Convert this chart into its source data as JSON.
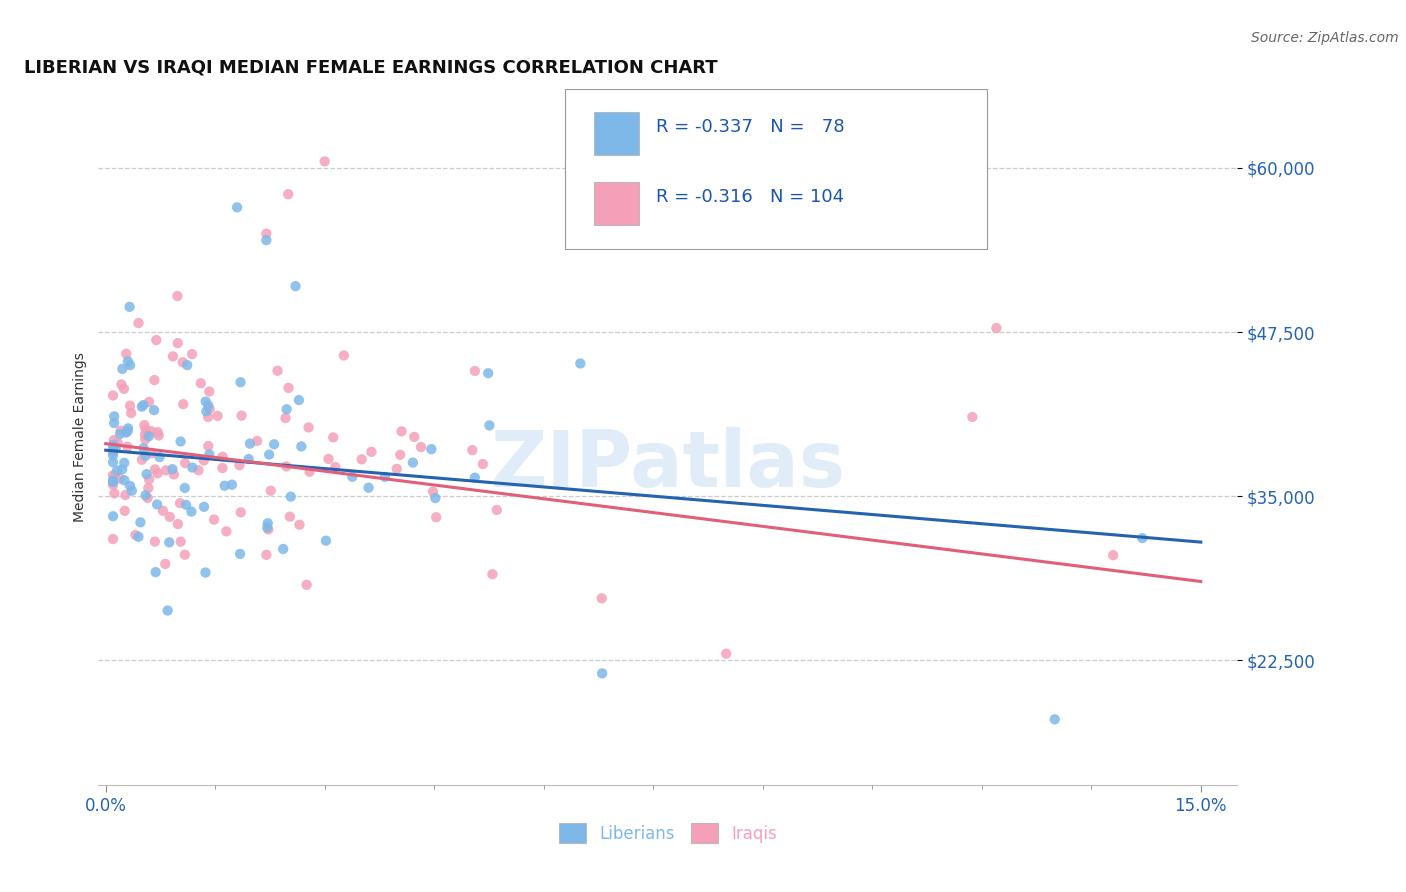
{
  "title": "LIBERIAN VS IRAQI MEDIAN FEMALE EARNINGS CORRELATION CHART",
  "source": "Source: ZipAtlas.com",
  "ylabel": "Median Female Earnings",
  "xlim": [
    -0.001,
    0.155
  ],
  "ylim": [
    13000,
    66000
  ],
  "xtick_positions": [
    0.0,
    0.15
  ],
  "xticklabels": [
    "0.0%",
    "15.0%"
  ],
  "ytick_positions": [
    22500,
    35000,
    47500,
    60000
  ],
  "yticklabels": [
    "$22,500",
    "$35,000",
    "$47,500",
    "$60,000"
  ],
  "liberian_color": "#7eb8e8",
  "iraqi_color": "#f4a0b8",
  "liberian_line_color": "#2563b0",
  "iraqi_line_color": "#e0607a",
  "R_liberian": -0.337,
  "N_liberian": 78,
  "R_iraqi": -0.316,
  "N_iraqi": 104,
  "watermark": "ZIPatlas",
  "background_color": "#ffffff",
  "grid_color": "#cccccc",
  "title_fontsize": 13,
  "axis_label_fontsize": 10,
  "tick_fontsize": 12,
  "source_fontsize": 10,
  "lib_line_y0": 38500,
  "lib_line_y1": 31500,
  "irq_line_y0": 39000,
  "irq_line_y1": 28500
}
